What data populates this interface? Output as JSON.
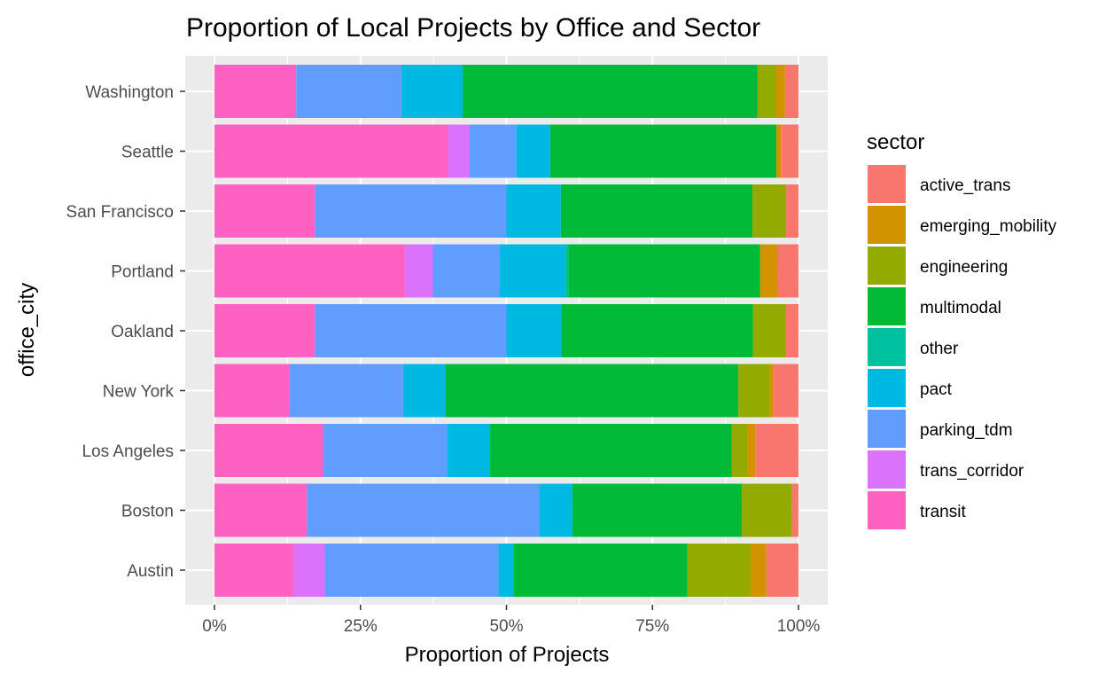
{
  "chart_data": {
    "type": "bar",
    "orientation": "horizontal",
    "stacked": true,
    "title": "Proportion of Local Projects by Office and Sector",
    "xlabel": "Proportion of Projects",
    "ylabel": "office_city",
    "xlim": [
      0,
      1
    ],
    "x_ticks": [
      0,
      0.25,
      0.5,
      0.75,
      1.0
    ],
    "x_tick_labels": [
      "0%",
      "25%",
      "50%",
      "75%",
      "100%"
    ],
    "grid": true,
    "background": "#ebebeb",
    "legend": {
      "title": "sector",
      "position": "right"
    },
    "categories": [
      "Washington",
      "Seattle",
      "San Francisco",
      "Portland",
      "Oakland",
      "New York",
      "Los Angeles",
      "Boston",
      "Austin"
    ],
    "series": [
      {
        "name": "transit",
        "color": "#FF61C3",
        "values": [
          0.14,
          0.4,
          0.172,
          0.326,
          0.172,
          0.128,
          0.186,
          0.158,
          0.135
        ]
      },
      {
        "name": "trans_corridor",
        "color": "#DB72FB",
        "values": [
          0.0,
          0.037,
          0.0,
          0.048,
          0.0,
          0.0,
          0.0,
          0.0,
          0.054
        ]
      },
      {
        "name": "parking_tdm",
        "color": "#619CFF",
        "values": [
          0.18,
          0.08,
          0.328,
          0.114,
          0.328,
          0.195,
          0.212,
          0.398,
          0.297
        ]
      },
      {
        "name": "pact",
        "color": "#00B9E3",
        "values": [
          0.105,
          0.058,
          0.093,
          0.112,
          0.094,
          0.072,
          0.074,
          0.057,
          0.027
        ]
      },
      {
        "name": "other",
        "color": "#00C19F",
        "values": [
          0.0,
          0.0,
          0.0,
          0.006,
          0.0,
          0.0,
          0.0,
          0.0,
          0.0
        ]
      },
      {
        "name": "multimodal",
        "color": "#00BA38",
        "values": [
          0.505,
          0.387,
          0.328,
          0.328,
          0.328,
          0.502,
          0.414,
          0.29,
          0.297
        ]
      },
      {
        "name": "engineering",
        "color": "#93AA00",
        "values": [
          0.032,
          0.0,
          0.058,
          0.0,
          0.056,
          0.053,
          0.026,
          0.086,
          0.108
        ]
      },
      {
        "name": "emerging_mobility",
        "color": "#D39200",
        "values": [
          0.015,
          0.008,
          0.0,
          0.031,
          0.0,
          0.007,
          0.014,
          0.0,
          0.027
        ]
      },
      {
        "name": "active_trans",
        "color": "#F8766D",
        "values": [
          0.023,
          0.03,
          0.021,
          0.035,
          0.022,
          0.043,
          0.074,
          0.011,
          0.055
        ]
      }
    ],
    "legend_order": [
      "active_trans",
      "emerging_mobility",
      "engineering",
      "multimodal",
      "other",
      "pact",
      "parking_tdm",
      "trans_corridor",
      "transit"
    ]
  }
}
